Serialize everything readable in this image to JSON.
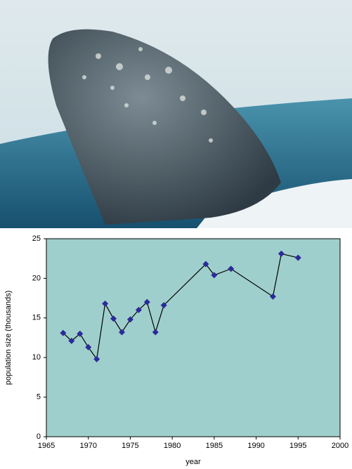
{
  "chart_data": {
    "type": "line",
    "x_label": "year",
    "y_label": "population size (thousands)",
    "x": [
      1967,
      1968,
      1969,
      1970,
      1971,
      1972,
      1973,
      1974,
      1975,
      1976,
      1977,
      1978,
      1979,
      1984,
      1985,
      1987,
      1992,
      1993,
      1995
    ],
    "values": [
      13.1,
      12.1,
      13.0,
      11.3,
      9.8,
      16.8,
      14.9,
      13.2,
      14.8,
      16.0,
      17.0,
      13.2,
      16.6,
      21.8,
      20.4,
      21.2,
      17.7,
      23.1,
      22.6
    ],
    "color": "#2b2b9b",
    "line_color": "#000000",
    "plot_background": "#9fcfcc",
    "xlim": [
      1965,
      2000
    ],
    "xticks": [
      1965,
      1970,
      1975,
      1980,
      1985,
      1990,
      1995,
      2000
    ],
    "ylim": [
      0,
      25
    ],
    "yticks": [
      0,
      5,
      10,
      15,
      20,
      25
    ]
  }
}
